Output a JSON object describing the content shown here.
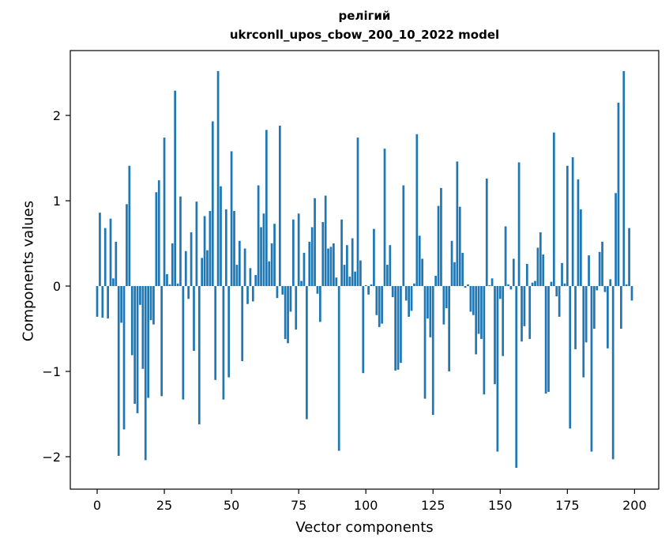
{
  "chart_data": {
    "type": "bar",
    "title_line1": "релігий",
    "title_line2": "ukrconll_upos_cbow_200_10_2022 model",
    "xlabel": "Vector components",
    "ylabel": "Components values",
    "xlim": [
      -10,
      209
    ],
    "ylim": [
      -2.38,
      2.76
    ],
    "xticks": [
      0,
      25,
      50,
      75,
      100,
      125,
      150,
      175,
      200
    ],
    "xtick_labels": [
      "0",
      "25",
      "50",
      "75",
      "100",
      "125",
      "150",
      "175",
      "200"
    ],
    "yticks": [
      -2,
      -1,
      0,
      1,
      2
    ],
    "ytick_labels": [
      "−2",
      "−1",
      "0",
      "1",
      "2"
    ],
    "bar_color": "#1f77b4",
    "grid": false,
    "values": [
      -0.36,
      0.86,
      -0.37,
      0.68,
      -0.38,
      0.79,
      0.09,
      0.52,
      -1.99,
      -0.43,
      -1.68,
      0.96,
      1.41,
      -0.81,
      -1.38,
      -1.49,
      -0.22,
      -0.97,
      -2.04,
      -1.31,
      -0.4,
      -0.45,
      1.1,
      1.24,
      -1.29,
      1.74,
      0.14,
      0.02,
      0.5,
      2.29,
      0.03,
      1.05,
      -1.33,
      0.41,
      -0.15,
      0.63,
      -0.76,
      0.99,
      -1.62,
      0.33,
      0.82,
      0.42,
      0.88,
      1.93,
      -1.1,
      2.52,
      1.17,
      -1.33,
      0.9,
      -1.07,
      1.58,
      0.88,
      0.25,
      0.53,
      -0.88,
      0.44,
      -0.21,
      0.21,
      -0.18,
      0.13,
      1.18,
      0.69,
      0.85,
      1.83,
      0.29,
      0.5,
      0.73,
      -0.14,
      1.88,
      -0.1,
      -0.62,
      -0.67,
      -0.3,
      0.78,
      -0.51,
      0.85,
      0.06,
      0.39,
      -1.56,
      0.52,
      0.69,
      1.03,
      -0.09,
      -0.42,
      0.75,
      1.06,
      0.44,
      0.46,
      0.5,
      0.1,
      -1.93,
      0.78,
      0.25,
      0.48,
      0.11,
      0.56,
      0.17,
      1.74,
      0.3,
      -1.02,
      0.01,
      -0.1,
      0.02,
      0.67,
      -0.34,
      -0.48,
      -0.44,
      1.61,
      0.25,
      0.48,
      -0.13,
      -0.99,
      -0.98,
      -0.9,
      1.18,
      -0.17,
      -0.36,
      -0.29,
      0.03,
      1.78,
      0.59,
      0.32,
      -1.32,
      -0.38,
      -0.6,
      -1.51,
      0.12,
      0.94,
      1.15,
      -0.45,
      -0.26,
      -1.0,
      0.53,
      0.28,
      1.46,
      0.93,
      0.39,
      -0.02,
      0.02,
      -0.3,
      -0.34,
      -0.8,
      -0.56,
      -0.62,
      -1.27,
      1.26,
      0.01,
      0.09,
      -1.15,
      -1.94,
      -0.15,
      -0.82,
      0.7,
      0.02,
      -0.04,
      0.32,
      -2.13,
      1.45,
      -0.65,
      -0.47,
      0.26,
      -0.62,
      0.04,
      0.06,
      0.45,
      0.63,
      0.37,
      -1.26,
      -1.24,
      0.05,
      1.8,
      -0.12,
      -0.36,
      0.27,
      0.03,
      1.41,
      -1.67,
      1.51,
      -0.74,
      1.25,
      0.9,
      -1.07,
      -0.66,
      0.36,
      -1.94,
      -0.5,
      -0.05,
      0.4,
      0.52,
      -0.07,
      -0.73,
      0.08,
      -2.03,
      1.09,
      2.15,
      -0.5,
      2.52,
      0.02,
      0.68,
      -0.17
    ]
  }
}
